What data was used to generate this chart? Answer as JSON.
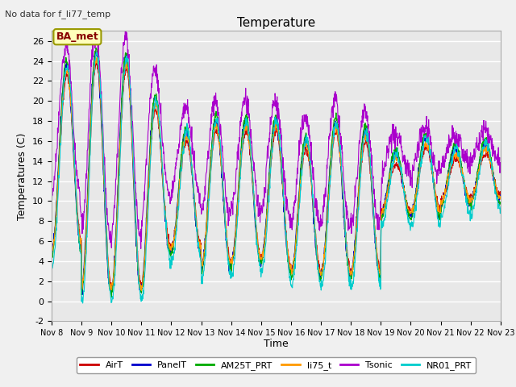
{
  "title": "Temperature",
  "no_data_text": "No data for f_li77_temp",
  "ba_met_label": "BA_met",
  "ylabel": "Temperatures (C)",
  "xlabel": "Time",
  "ylim": [
    -2,
    27
  ],
  "yticks": [
    -2,
    0,
    2,
    4,
    6,
    8,
    10,
    12,
    14,
    16,
    18,
    20,
    22,
    24,
    26
  ],
  "xtick_labels": [
    "Nov 8",
    "Nov 9",
    "Nov 10",
    "Nov 11",
    "Nov 12",
    "Nov 13",
    "Nov 14",
    "Nov 15",
    "Nov 16",
    "Nov 17",
    "Nov 18",
    "Nov 19",
    "Nov 20",
    "Nov 21",
    "Nov 22",
    "Nov 23"
  ],
  "fig_bg_color": "#f0f0f0",
  "plot_bg_color": "#e8e8e8",
  "grid_color": "#ffffff",
  "legend_items": [
    {
      "label": "AirT",
      "color": "#cc0000"
    },
    {
      "label": "PanelT",
      "color": "#0000cc"
    },
    {
      "label": "AM25T_PRT",
      "color": "#00aa00"
    },
    {
      "label": "li75_t",
      "color": "#ff9900"
    },
    {
      "label": "Tsonic",
      "color": "#aa00cc"
    },
    {
      "label": "NR01_PRT",
      "color": "#00cccc"
    }
  ]
}
